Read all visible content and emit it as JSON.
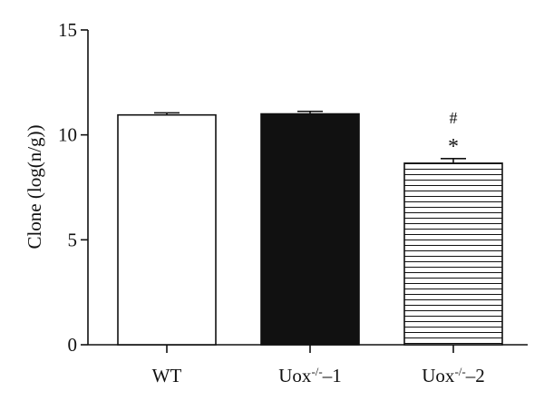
{
  "chart_data": {
    "type": "bar",
    "title": "",
    "xlabel": "",
    "ylabel": "Clone (log(n/g))",
    "ylim": [
      0,
      15
    ],
    "yticks": [
      0,
      5,
      10,
      15
    ],
    "categories": [
      {
        "base": "WT",
        "sup": "",
        "suffix": ""
      },
      {
        "base": "Uox",
        "sup": "-/-",
        "suffix": "–1"
      },
      {
        "base": "Uox",
        "sup": "-/-",
        "suffix": "–2"
      }
    ],
    "values": [
      10.95,
      11.0,
      8.65
    ],
    "errors": [
      0.1,
      0.12,
      0.22
    ],
    "fills": [
      "white",
      "black",
      "horizontal-stripes"
    ],
    "annotations": [
      {
        "category_index": 2,
        "labels": [
          "#",
          "*"
        ]
      }
    ],
    "grid": false,
    "legend": "none"
  },
  "colors": {
    "axis": "#111111",
    "bar_stroke": "#111111",
    "solid_fill": "#111111",
    "open_fill": "#ffffff"
  }
}
